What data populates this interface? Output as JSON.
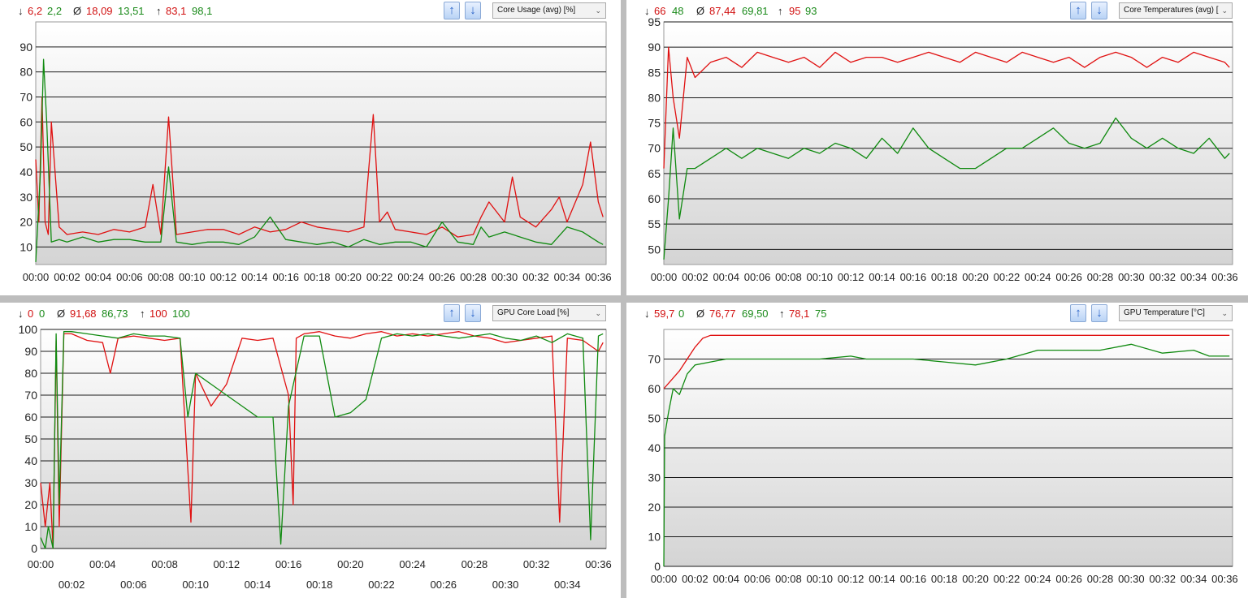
{
  "panels": [
    {
      "stats": {
        "min_label": "↓",
        "min_red": "6,2",
        "min_green": "2,2",
        "avg_label": "Ø",
        "avg_red": "18,09",
        "avg_green": "13,51",
        "max_label": "↑",
        "max_red": "83,1",
        "max_green": "98,1"
      },
      "sensor": "Core Usage (avg) [%]"
    },
    {
      "stats": {
        "min_label": "↓",
        "min_red": "66",
        "min_green": "48",
        "avg_label": "Ø",
        "avg_red": "87,44",
        "avg_green": "69,81",
        "max_label": "↑",
        "max_red": "95",
        "max_green": "93"
      },
      "sensor": "Core Temperatures (avg) ["
    },
    {
      "stats": {
        "min_label": "↓",
        "min_red": "0",
        "min_green": "0",
        "avg_label": "Ø",
        "avg_red": "91,68",
        "avg_green": "86,73",
        "max_label": "↑",
        "max_red": "100",
        "max_green": "100"
      },
      "sensor": "GPU Core Load [%]"
    },
    {
      "stats": {
        "min_label": "↓",
        "min_red": "59,7",
        "min_green": "0",
        "avg_label": "Ø",
        "avg_red": "76,77",
        "avg_green": "69,50",
        "max_label": "↑",
        "max_red": "78,1",
        "max_green": "75"
      },
      "sensor": "GPU Temperature [°C]"
    }
  ],
  "colors": {
    "series_a": "#e01010",
    "series_b": "#108a10"
  },
  "chart_data": [
    {
      "type": "line",
      "ylim": [
        3,
        100
      ],
      "yticks": [
        "10",
        "20",
        "30",
        "40",
        "50",
        "60",
        "70",
        "80",
        "90"
      ],
      "xlim": [
        0,
        36.5
      ],
      "xticks": [
        "00:00",
        "00:02",
        "00:04",
        "00:06",
        "00:08",
        "00:10",
        "00:12",
        "00:14",
        "00:16",
        "00:18",
        "00:20",
        "00:22",
        "00:24",
        "00:26",
        "00:28",
        "00:30",
        "00:32",
        "00:34",
        "00:36"
      ],
      "xtick_layout": "single",
      "series": [
        {
          "x": [
            0,
            0.2,
            0.4,
            0.6,
            0.8,
            1,
            1.5,
            2,
            3,
            4,
            5,
            6,
            7,
            7.5,
            8,
            8.5,
            9,
            10,
            11,
            12,
            13,
            14,
            15,
            16,
            17,
            18,
            19,
            20,
            21,
            21.6,
            22,
            22.5,
            23,
            24,
            25,
            26,
            27,
            28,
            28.5,
            29,
            30,
            30.5,
            31,
            32,
            33,
            33.5,
            34,
            35,
            35.5,
            36,
            36.3
          ],
          "y": [
            45,
            20,
            70,
            20,
            15,
            60,
            18,
            15,
            16,
            15,
            17,
            16,
            18,
            35,
            15,
            62,
            15,
            16,
            17,
            17,
            15,
            18,
            16,
            17,
            20,
            18,
            17,
            16,
            18,
            63,
            20,
            24,
            17,
            16,
            15,
            18,
            14,
            15,
            22,
            28,
            20,
            38,
            22,
            18,
            25,
            30,
            20,
            35,
            52,
            28,
            22
          ]
        },
        {
          "x": [
            0,
            0.3,
            0.5,
            0.7,
            1,
            1.5,
            2,
            3,
            4,
            5,
            6,
            7,
            8,
            8.5,
            9,
            10,
            11,
            12,
            13,
            14,
            15,
            16,
            17,
            18,
            19,
            20,
            21,
            22,
            23,
            24,
            25,
            26,
            27,
            28,
            28.5,
            29,
            30,
            31,
            32,
            33,
            34,
            35,
            36,
            36.3
          ],
          "y": [
            4,
            40,
            85,
            60,
            12,
            13,
            12,
            14,
            12,
            13,
            13,
            12,
            12,
            42,
            12,
            11,
            12,
            12,
            11,
            14,
            22,
            13,
            12,
            11,
            12,
            10,
            13,
            11,
            12,
            12,
            10,
            20,
            12,
            11,
            18,
            14,
            16,
            14,
            12,
            11,
            18,
            16,
            12,
            11
          ]
        }
      ]
    },
    {
      "type": "line",
      "ylim": [
        47,
        95
      ],
      "yticks": [
        "50",
        "55",
        "60",
        "65",
        "70",
        "75",
        "80",
        "85",
        "90",
        "95"
      ],
      "xlim": [
        0,
        36.5
      ],
      "xticks": [
        "00:00",
        "00:02",
        "00:04",
        "00:06",
        "00:08",
        "00:10",
        "00:12",
        "00:14",
        "00:16",
        "00:18",
        "00:20",
        "00:22",
        "00:24",
        "00:26",
        "00:28",
        "00:30",
        "00:32",
        "00:34",
        "00:36"
      ],
      "xtick_layout": "single",
      "series": [
        {
          "x": [
            0,
            0.3,
            0.6,
            1,
            1.5,
            2,
            3,
            4,
            5,
            6,
            7,
            8,
            9,
            10,
            11,
            12,
            13,
            14,
            15,
            16,
            17,
            18,
            19,
            20,
            21,
            22,
            23,
            24,
            25,
            26,
            27,
            28,
            29,
            30,
            31,
            32,
            33,
            34,
            35,
            36,
            36.3
          ],
          "y": [
            66,
            90,
            80,
            72,
            88,
            84,
            87,
            88,
            86,
            89,
            88,
            87,
            88,
            86,
            89,
            87,
            88,
            88,
            87,
            88,
            89,
            88,
            87,
            89,
            88,
            87,
            89,
            88,
            87,
            88,
            86,
            88,
            89,
            88,
            86,
            88,
            87,
            89,
            88,
            87,
            86
          ]
        },
        {
          "x": [
            0,
            0.3,
            0.6,
            1,
            1.5,
            2,
            3,
            4,
            5,
            6,
            7,
            8,
            9,
            10,
            11,
            12,
            13,
            14,
            15,
            16,
            17,
            18,
            19,
            20,
            21,
            22,
            23,
            24,
            25,
            26,
            27,
            28,
            29,
            30,
            31,
            32,
            33,
            34,
            35,
            36,
            36.3
          ],
          "y": [
            48,
            60,
            74,
            56,
            66,
            66,
            68,
            70,
            68,
            70,
            69,
            68,
            70,
            69,
            71,
            70,
            68,
            72,
            69,
            74,
            70,
            68,
            66,
            66,
            68,
            70,
            70,
            72,
            74,
            71,
            70,
            71,
            76,
            72,
            70,
            72,
            70,
            69,
            72,
            68,
            69
          ]
        }
      ]
    },
    {
      "type": "line",
      "ylim": [
        0,
        100
      ],
      "yticks": [
        "0",
        "10",
        "20",
        "30",
        "40",
        "50",
        "60",
        "70",
        "80",
        "90",
        "100"
      ],
      "xlim": [
        0,
        36.5
      ],
      "xticks": [
        "00:00",
        "00:02",
        "00:04",
        "00:06",
        "00:08",
        "00:10",
        "00:12",
        "00:14",
        "00:16",
        "00:18",
        "00:20",
        "00:22",
        "00:24",
        "00:26",
        "00:28",
        "00:30",
        "00:32",
        "00:34",
        "00:36"
      ],
      "xtick_layout": "staggered",
      "series": [
        {
          "x": [
            0,
            0.3,
            0.6,
            0.8,
            1,
            1.2,
            1.5,
            2,
            3,
            4,
            4.5,
            5,
            6,
            7,
            8,
            9,
            9.7,
            10,
            11,
            12,
            13,
            14,
            15,
            16,
            16.3,
            16.5,
            17,
            18,
            19,
            20,
            21,
            22,
            23,
            24,
            25,
            26,
            27,
            28,
            29,
            30,
            31,
            32,
            33,
            33.5,
            34,
            35,
            36,
            36.3
          ],
          "y": [
            30,
            10,
            30,
            0,
            95,
            10,
            98,
            98,
            95,
            94,
            80,
            96,
            97,
            96,
            95,
            96,
            12,
            80,
            65,
            75,
            96,
            95,
            96,
            70,
            20,
            96,
            98,
            99,
            97,
            96,
            98,
            99,
            97,
            98,
            97,
            98,
            99,
            97,
            96,
            94,
            95,
            96,
            97,
            12,
            96,
            95,
            90,
            94
          ]
        },
        {
          "x": [
            0,
            0.3,
            0.5,
            0.8,
            1,
            1.2,
            1.5,
            2,
            3,
            4,
            5,
            6,
            7,
            8,
            9,
            9.5,
            10,
            11,
            12,
            13,
            14,
            15,
            15.5,
            16,
            17,
            18,
            19,
            20,
            21,
            22,
            23,
            24,
            25,
            26,
            27,
            28,
            29,
            30,
            31,
            32,
            33,
            34,
            35,
            35.5,
            36,
            36.3
          ],
          "y": [
            5,
            0,
            10,
            0,
            98,
            20,
            99,
            99,
            98,
            97,
            96,
            98,
            97,
            97,
            96,
            60,
            80,
            75,
            70,
            65,
            60,
            60,
            2,
            65,
            97,
            97,
            60,
            62,
            68,
            96,
            98,
            97,
            98,
            97,
            96,
            97,
            98,
            96,
            95,
            97,
            94,
            98,
            96,
            4,
            97,
            98
          ]
        }
      ]
    },
    {
      "type": "line",
      "ylim": [
        0,
        80
      ],
      "yticks": [
        "0",
        "10",
        "20",
        "30",
        "40",
        "50",
        "60",
        "70"
      ],
      "xlim": [
        0,
        36.5
      ],
      "xticks": [
        "00:00",
        "00:02",
        "00:04",
        "00:06",
        "00:08",
        "00:10",
        "00:12",
        "00:14",
        "00:16",
        "00:18",
        "00:20",
        "00:22",
        "00:24",
        "00:26",
        "00:28",
        "00:30",
        "00:32",
        "00:34",
        "00:36"
      ],
      "xtick_layout": "single",
      "series": [
        {
          "x": [
            0,
            0.5,
            1,
            1.5,
            2,
            2.5,
            3,
            4,
            5,
            6,
            8,
            10,
            12,
            14,
            16,
            18,
            20,
            22,
            24,
            26,
            28,
            30,
            32,
            34,
            36,
            36.3
          ],
          "y": [
            60,
            63,
            66,
            70,
            74,
            77,
            78,
            78,
            78,
            78,
            78,
            78,
            78,
            78,
            78,
            78,
            78,
            78,
            78,
            78,
            78,
            78,
            78,
            78,
            78,
            78
          ]
        },
        {
          "x": [
            0,
            0.05,
            0.3,
            0.6,
            1,
            1.5,
            2,
            3,
            4,
            5,
            6,
            8,
            10,
            12,
            13,
            14,
            16,
            18,
            20,
            22,
            24,
            26,
            28,
            30,
            32,
            34,
            35,
            36,
            36.3
          ],
          "y": [
            0,
            44,
            52,
            60,
            58,
            65,
            68,
            69,
            70,
            70,
            70,
            70,
            70,
            71,
            70,
            70,
            70,
            69,
            68,
            70,
            73,
            73,
            73,
            75,
            72,
            73,
            71,
            71,
            71
          ]
        }
      ]
    }
  ]
}
